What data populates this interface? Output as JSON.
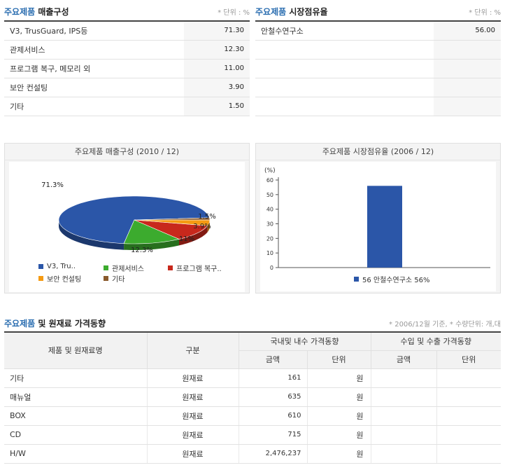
{
  "sales": {
    "title_hl": "주요제품",
    "title_rest": " 매출구성",
    "unit": "* 단위 : %",
    "rows": [
      {
        "name": "V3, TrusGuard, IPS등",
        "value": "71.30"
      },
      {
        "name": "관제서비스",
        "value": "12.30"
      },
      {
        "name": "프로그램 복구, 메모리 외",
        "value": "11.00"
      },
      {
        "name": "보안 컨설팅",
        "value": "3.90"
      },
      {
        "name": "기타",
        "value": "1.50"
      }
    ]
  },
  "share": {
    "title_hl": "주요제품",
    "title_rest": " 시장점유율",
    "unit": "* 단위 : %",
    "rows": [
      {
        "name": "안철수연구소",
        "value": "56.00"
      }
    ]
  },
  "pie_chart": {
    "title": "주요제품 매출구성 (2010 / 12)",
    "labels": [
      "71.3%",
      "12.3%",
      "11%",
      "3.9%",
      "1.5%"
    ],
    "legend": [
      "V3, Tru..",
      "관제서비스",
      "프로그램 복구..",
      "보안 컨설팅",
      "기타"
    ]
  },
  "bar_chart": {
    "title": "주요제품 시장점유율 (2006 / 12)",
    "ylabel": "(%)",
    "ticks": [
      "0",
      "10",
      "20",
      "30",
      "40",
      "50",
      "60"
    ],
    "legend": "56 안철수연구소 56%"
  },
  "chart_data": [
    {
      "type": "pie",
      "title": "주요제품 매출구성 (2010 / 12)",
      "categories": [
        "V3, Tru..",
        "관제서비스",
        "프로그램 복구..",
        "보안 컨설팅",
        "기타"
      ],
      "values": [
        71.3,
        12.3,
        11.0,
        3.9,
        1.5
      ],
      "colors": [
        "#2b56a8",
        "#3cab2e",
        "#c8281c",
        "#f59a12",
        "#8a5a2c"
      ],
      "legend_position": "bottom"
    },
    {
      "type": "bar",
      "title": "주요제품 시장점유율 (2006 / 12)",
      "categories": [
        "안철수연구소"
      ],
      "values": [
        56
      ],
      "ylabel": "(%)",
      "ylim": [
        0,
        60
      ],
      "grid": false,
      "colors": [
        "#2b56a8"
      ],
      "legend_position": "bottom"
    }
  ],
  "price": {
    "title_hl": "주요제품",
    "title_rest": " 및 원재료 가격동향",
    "note": "* 2006/12월 기준, * 수량단위: 개,대",
    "headers": {
      "name": "제품 및 원재료명",
      "type": "구분",
      "domestic": "국내및 내수 가격동향",
      "import": "수입 및 수출 가격동향",
      "amount": "금액",
      "unit": "단위",
      "amount2": "금액",
      "unit2": "단위"
    },
    "rows": [
      {
        "name": "기타",
        "type": "원재료",
        "amount": "161",
        "unit": "원"
      },
      {
        "name": "매뉴얼",
        "type": "원재료",
        "amount": "635",
        "unit": "원"
      },
      {
        "name": "BOX",
        "type": "원재료",
        "amount": "610",
        "unit": "원"
      },
      {
        "name": "CD",
        "type": "원재료",
        "amount": "715",
        "unit": "원"
      },
      {
        "name": "H/W",
        "type": "원재료",
        "amount": "2,476,237",
        "unit": "원"
      }
    ]
  }
}
